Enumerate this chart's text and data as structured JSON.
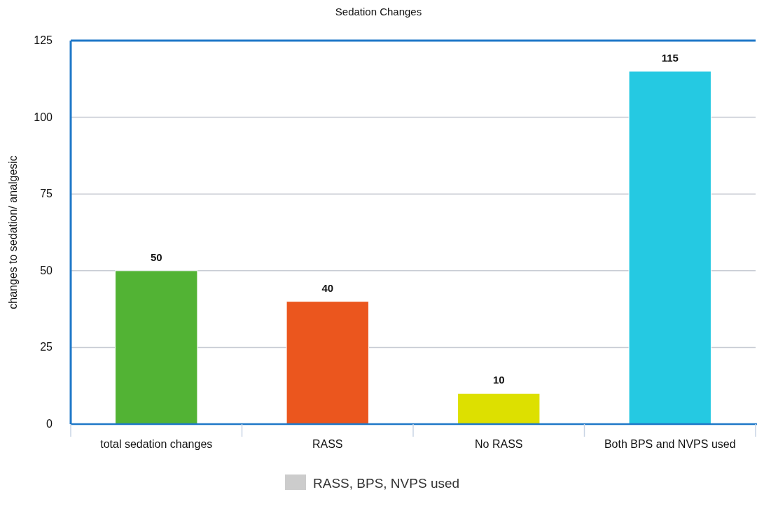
{
  "chart_data": {
    "type": "bar",
    "title": "Sedation Changes",
    "ylabel": "changes to sedation/ analgesic",
    "categories": [
      "total sedation changes",
      "RASS",
      "No RASS",
      "Both BPS and NVPS used"
    ],
    "series": [
      {
        "name": "RASS, BPS, NVPS used",
        "color": "#cccccc",
        "colors": [
          "#52b334",
          "#eb561e",
          "#dde000",
          "#25c9e2"
        ],
        "values": [
          50,
          40,
          10,
          115
        ]
      }
    ],
    "ylim": [
      0,
      125
    ],
    "yticks": [
      0,
      25,
      50,
      75,
      100,
      125
    ],
    "grid": "y",
    "legend": "bottom",
    "data_labels": true
  }
}
